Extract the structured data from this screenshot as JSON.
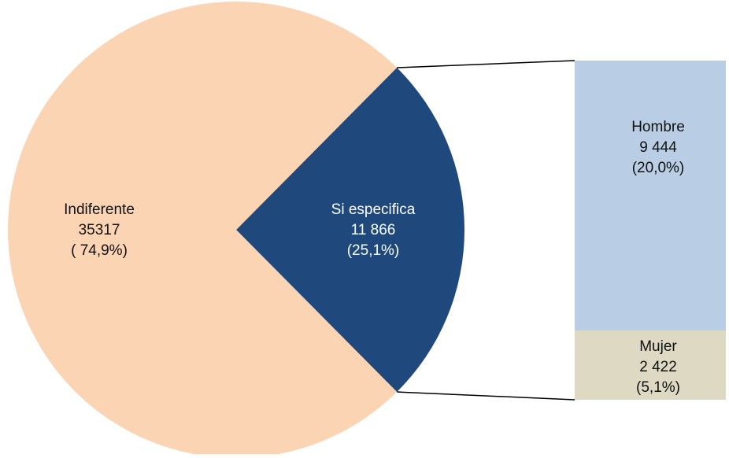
{
  "chart_data": {
    "type": "pie",
    "title": "",
    "pie": {
      "slices": [
        {
          "label": "Indiferente",
          "value": 35317,
          "value_text": "35317",
          "percent_text": "( 74,9%)",
          "color": "#FBD4B4"
        },
        {
          "label": "Si especifica",
          "value": 11866,
          "value_text": "11 866",
          "percent_text": "(25,1%)",
          "color": "#1F497D"
        }
      ]
    },
    "breakdown": {
      "of": "Si especifica",
      "segments": [
        {
          "label": "Hombre",
          "value": 9444,
          "value_text": "9 444",
          "percent_text": "(20,0%)",
          "color": "#B9CDE5"
        },
        {
          "label": "Mujer",
          "value": 2422,
          "value_text": "2 422",
          "percent_text": "(5,1%)",
          "color": "#DDD9C3"
        }
      ]
    },
    "connector_color": "#000000",
    "legend": "none",
    "grid": false
  }
}
